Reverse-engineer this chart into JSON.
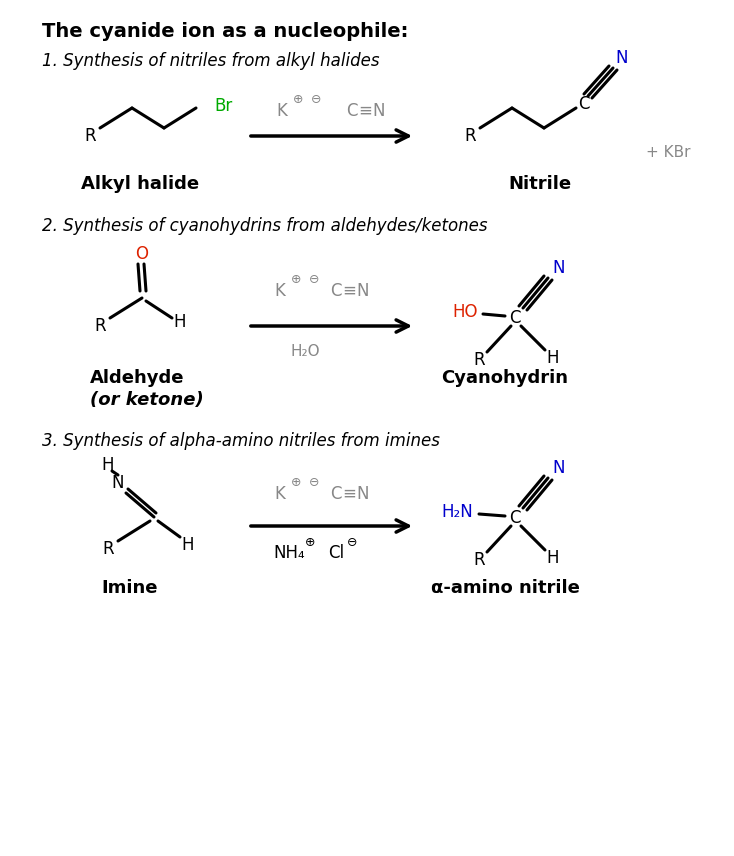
{
  "bg_color": "#ffffff",
  "title": "The cyanide ion as a nucleophile:",
  "title_fontsize": 14,
  "title_bold": true,
  "section1_label": "1. Synthesis of nitriles from alkyl halides",
  "section2_label": "2. Synthesis of cyanohydrins from aldehydes/ketones",
  "section3_label": "3. Synthesis of alpha-amino nitriles from imines",
  "italic_fontsize": 12,
  "mol_fontsize": 12,
  "label_fontsize": 13,
  "gray": "#888888",
  "green": "#00aa00",
  "red": "#dd2200",
  "blue": "#0000cc"
}
